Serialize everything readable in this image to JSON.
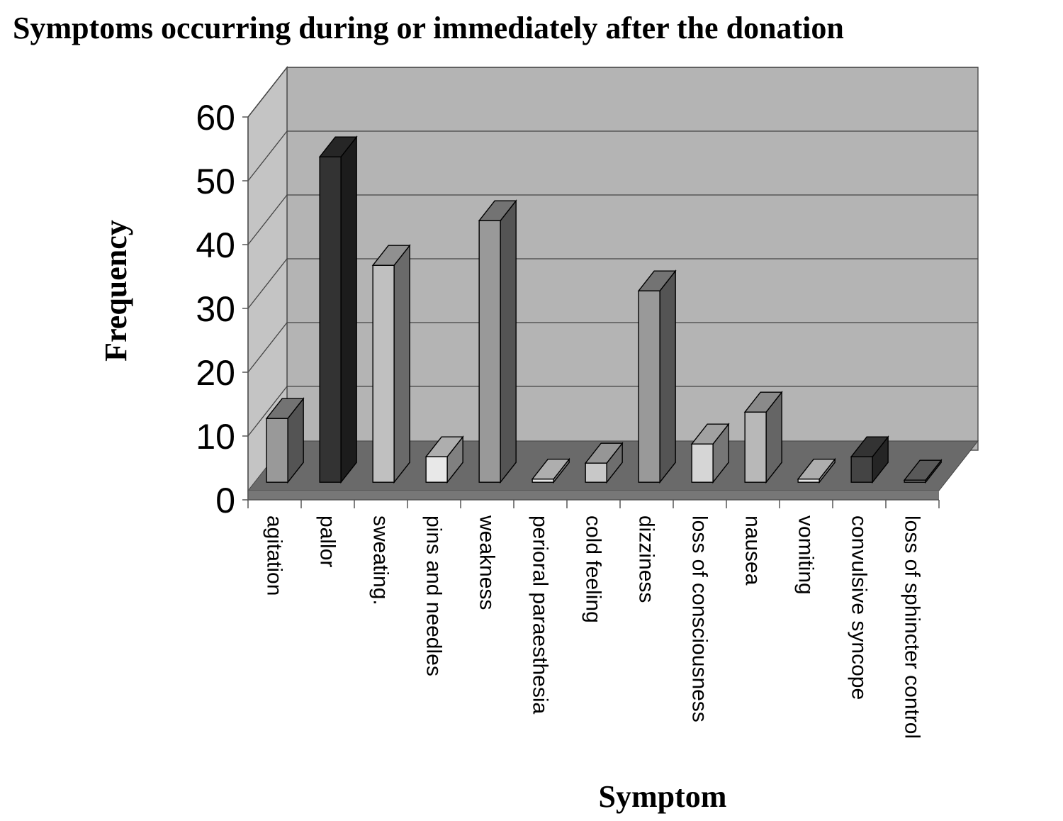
{
  "chart_data": {
    "type": "bar",
    "title": "Symptoms occurring during or immediately after the donation",
    "xlabel": "Symptom",
    "ylabel": "Frequency",
    "ylim": [
      0,
      60
    ],
    "yticks": [
      0,
      10,
      20,
      30,
      40,
      50,
      60
    ],
    "grid": true,
    "categories": [
      "agitation",
      "pallor",
      "sweating.",
      "pins and needles",
      "weakness",
      "perioral paraesthesia",
      "cold feeling",
      "dizziness",
      "loss of consciousness",
      "nausea",
      "vomiting",
      "convulsive syncope",
      "loss of sphincter control"
    ],
    "values": [
      10,
      51,
      34,
      4,
      41,
      0.5,
      3,
      30,
      6,
      11,
      0.5,
      4,
      0
    ],
    "bar_colors": [
      "#999999",
      "#333333",
      "#c0c0c0",
      "#e8e8e8",
      "#999999",
      "#e8e8e8",
      "#c8c8c8",
      "#999999",
      "#d6d6d6",
      "#b8b8b8",
      "#e8e8e8",
      "#444444",
      "#777777"
    ]
  }
}
